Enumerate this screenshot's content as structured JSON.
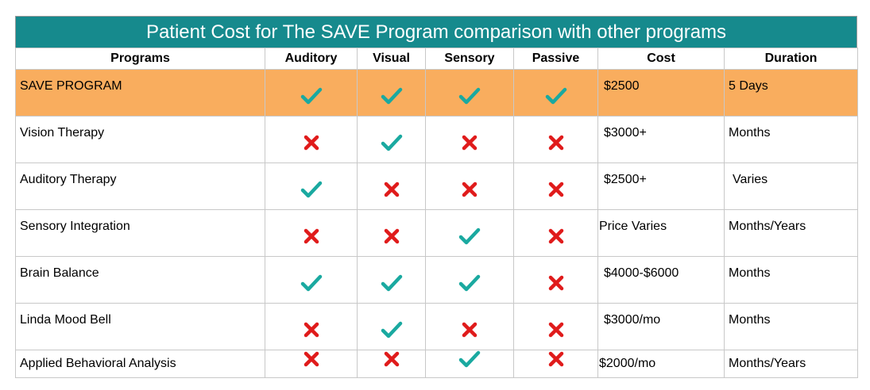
{
  "title": "Patient Cost for The SAVE Program comparison with other programs",
  "headers": [
    "Programs",
    "Auditory",
    "Visual",
    "Sensory",
    "Passive",
    "Cost",
    "Duration"
  ],
  "rows": [
    {
      "program": "SAVE PROGRAM",
      "marks": [
        "check",
        "check",
        "check",
        "check"
      ],
      "cost": "$2500",
      "duration": "5 Days",
      "highlight": true
    },
    {
      "program": "Vision Therapy",
      "marks": [
        "cross",
        "check",
        "cross",
        "cross"
      ],
      "cost": "$3000+",
      "duration": "Months"
    },
    {
      "program": "Auditory Therapy",
      "marks": [
        "check",
        "cross",
        "cross",
        "cross"
      ],
      "cost": "$2500+",
      "duration": "Varies"
    },
    {
      "program": "Sensory Integration",
      "marks": [
        "cross",
        "cross",
        "check",
        "cross"
      ],
      "cost": "Price Varies",
      "duration": "Months/Years"
    },
    {
      "program": "Brain Balance",
      "marks": [
        "check",
        "check",
        "check",
        "cross"
      ],
      "cost": "$4000-$6000",
      "duration": "Months"
    },
    {
      "program": "Linda Mood Bell",
      "marks": [
        "cross",
        "check",
        "cross",
        "cross"
      ],
      "cost": "$3000/mo",
      "duration": "Months"
    },
    {
      "program": "Applied Behavioral Analysis",
      "marks": [
        "cross",
        "cross",
        "check",
        "cross"
      ],
      "cost": "$2000/mo",
      "duration": "Months/Years"
    }
  ],
  "colors": {
    "header_bg": "#168a8d",
    "highlight_bg": "#f9ad5e",
    "check": "#1aa9a0",
    "cross": "#e01b1b"
  }
}
